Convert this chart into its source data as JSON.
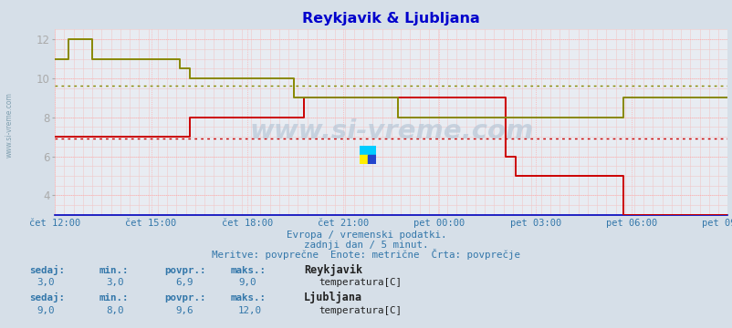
{
  "title": "Reykjavik & Ljubljana",
  "background_color": "#d6dfe8",
  "plot_bg_color": "#e8ecf2",
  "x_labels": [
    "čet 12:00",
    "čet 15:00",
    "čet 18:00",
    "čet 21:00",
    "pet 00:00",
    "pet 03:00",
    "pet 06:00",
    "pet 09:00"
  ],
  "ylim": [
    3.0,
    12.5
  ],
  "yticks": [
    4,
    6,
    8,
    10,
    12
  ],
  "reykjavik_color": "#cc0000",
  "ljubljana_color": "#888800",
  "reykjavik_avg": 6.9,
  "ljubljana_avg": 9.6,
  "watermark": "www.si-vreme.com",
  "subtitle1": "Evropa / vremenski podatki.",
  "subtitle2": "zadnji dan / 5 minut.",
  "subtitle3": "Meritve: povprečne  Enote: metrične  Črta: povprečje",
  "reykjavik_sedaj": "3,0",
  "reykjavik_min": "3,0",
  "reykjavik_povpr": "6,9",
  "reykjavik_maks": "9,0",
  "ljubljana_sedaj": "9,0",
  "ljubljana_min": "8,0",
  "ljubljana_povpr": "9,6",
  "ljubljana_maks": "12,0",
  "reykjavik_x": [
    0.0,
    0.055,
    0.055,
    0.185,
    0.185,
    0.2,
    0.2,
    0.355,
    0.355,
    0.37,
    0.37,
    0.51,
    0.51,
    0.525,
    0.525,
    0.67,
    0.67,
    0.685,
    0.685,
    0.835,
    0.835,
    0.845,
    0.845,
    1.0
  ],
  "reykjavik_y": [
    7.0,
    7.0,
    7.0,
    7.0,
    7.0,
    7.0,
    8.0,
    8.0,
    8.0,
    8.0,
    9.0,
    9.0,
    9.0,
    9.0,
    9.0,
    9.0,
    6.0,
    6.0,
    5.0,
    5.0,
    5.0,
    5.0,
    3.0,
    3.0
  ],
  "ljubljana_x": [
    0.0,
    0.02,
    0.02,
    0.055,
    0.055,
    0.185,
    0.185,
    0.2,
    0.2,
    0.355,
    0.355,
    0.37,
    0.37,
    0.51,
    0.51,
    0.525,
    0.525,
    0.67,
    0.67,
    0.835,
    0.835,
    0.845,
    0.845,
    1.0
  ],
  "ljubljana_y": [
    11.0,
    11.0,
    12.0,
    12.0,
    11.0,
    11.0,
    10.5,
    10.5,
    10.0,
    10.0,
    9.0,
    9.0,
    9.0,
    9.0,
    8.0,
    8.0,
    8.0,
    8.0,
    8.0,
    8.0,
    8.0,
    8.0,
    9.0,
    9.0
  ]
}
